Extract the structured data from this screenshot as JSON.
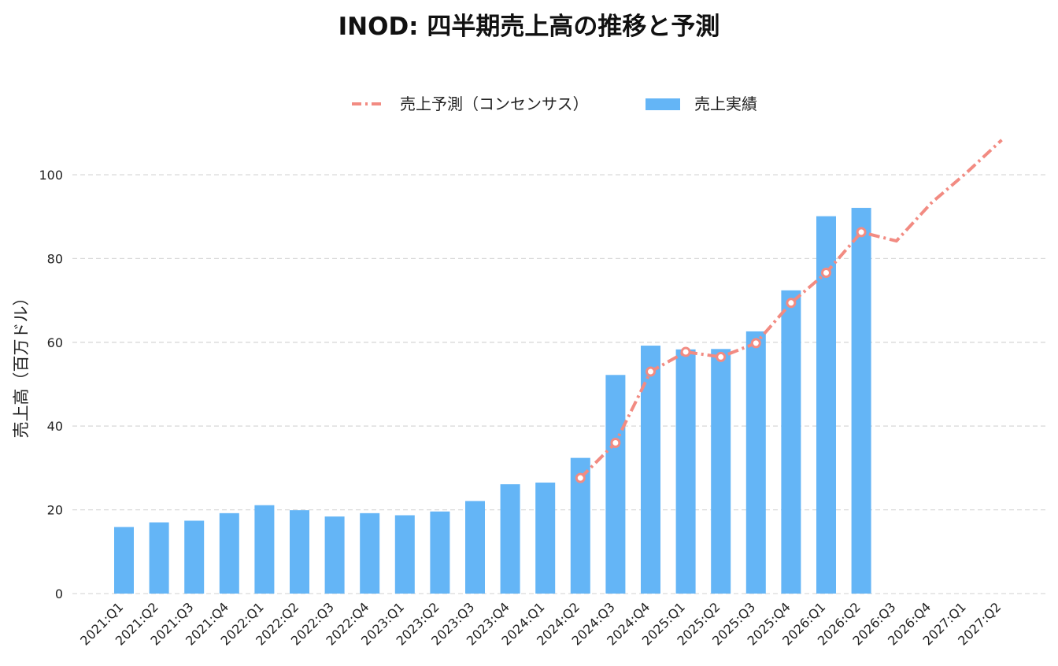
{
  "chart_data": {
    "type": "bar",
    "title": "INOD: 四半期売上高の推移と予測",
    "ylabel": "売上高（百万ドル）",
    "xlabel": "",
    "ylim": [
      0,
      110
    ],
    "yticks": [
      0,
      20,
      40,
      60,
      80,
      100
    ],
    "grid": "horizontal dashed",
    "legend_position": "top-center",
    "categories": [
      "2021:Q1",
      "2021:Q2",
      "2021:Q3",
      "2021:Q4",
      "2022:Q1",
      "2022:Q2",
      "2022:Q3",
      "2022:Q4",
      "2023:Q1",
      "2023:Q2",
      "2023:Q3",
      "2023:Q4",
      "2024:Q1",
      "2024:Q2",
      "2024:Q3",
      "2024:Q4",
      "2025:Q1",
      "2025:Q2",
      "2025:Q3",
      "2025:Q4",
      "2026:Q1",
      "2026:Q2",
      "2026:Q3",
      "2026:Q4",
      "2027:Q1",
      "2027:Q2"
    ],
    "series": [
      {
        "name": "売上予測（コンセンサス）",
        "kind": "line",
        "color": "#F28B82",
        "values": [
          null,
          null,
          null,
          null,
          null,
          null,
          null,
          null,
          null,
          null,
          null,
          null,
          null,
          27.6,
          36.0,
          53.0,
          57.7,
          56.5,
          59.8,
          69.4,
          76.6,
          86.3,
          84.2,
          93.3,
          100.5,
          108.3
        ]
      },
      {
        "name": "売上実績",
        "kind": "bar",
        "color": "#64B5F6",
        "values": [
          15.9,
          17.0,
          17.4,
          19.2,
          21.1,
          19.9,
          18.4,
          19.2,
          18.7,
          19.6,
          22.1,
          26.1,
          26.5,
          32.4,
          52.2,
          59.2,
          58.3,
          58.4,
          62.6,
          72.4,
          90.1,
          92.1,
          null,
          null,
          null,
          null
        ]
      }
    ],
    "markers": {
      "style": "white-outline circle",
      "on_series": "売上予測（コンセンサス）",
      "categories": [
        "2024:Q2",
        "2024:Q3",
        "2024:Q4",
        "2025:Q1",
        "2025:Q2",
        "2025:Q3",
        "2025:Q4",
        "2026:Q1",
        "2026:Q2"
      ]
    }
  }
}
